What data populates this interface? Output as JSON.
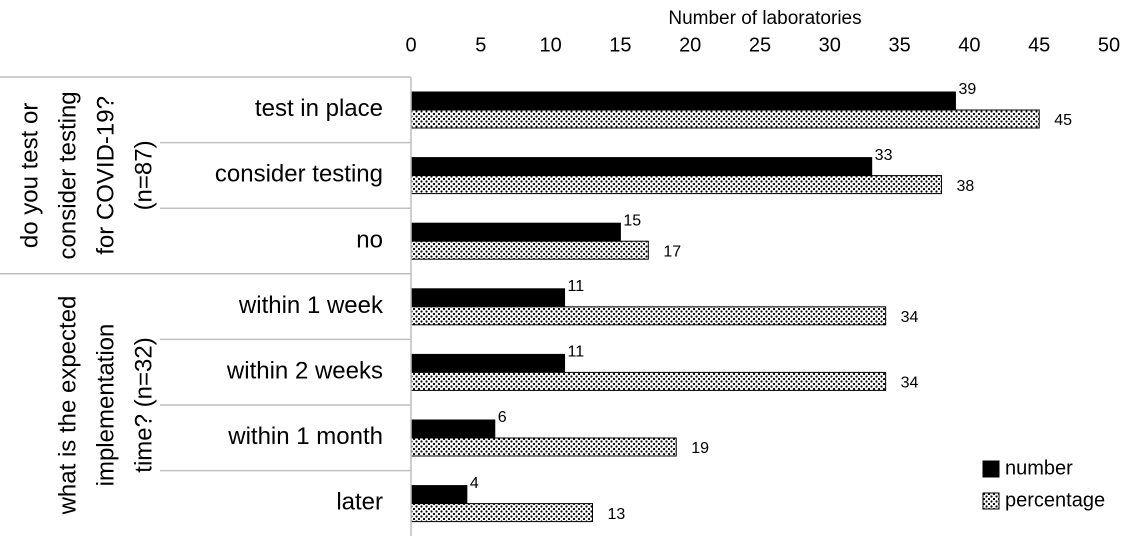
{
  "chart_data": {
    "type": "bar",
    "orientation": "horizontal",
    "x_label": "Number of laboratories",
    "xlim": [
      0,
      50
    ],
    "xticks": [
      0,
      5,
      10,
      15,
      20,
      25,
      30,
      35,
      40,
      45,
      50
    ],
    "groups": [
      {
        "label": [
          "do you test or",
          "consider testing",
          "for COVID-19?",
          "(n=87)"
        ],
        "categories": [
          "test in place",
          "consider testing",
          "no"
        ]
      },
      {
        "label": [
          "what is the expected",
          "implementation",
          "time? (n=32)"
        ],
        "categories": [
          "within 1 week",
          "within 2 weeks",
          "within 1 month",
          "later"
        ]
      }
    ],
    "series": [
      {
        "name": "number",
        "color": "#000000",
        "values": [
          39,
          33,
          15,
          11,
          11,
          6,
          4
        ]
      },
      {
        "name": "percentage",
        "color": "#ffffff",
        "pattern": "dots",
        "values": [
          45,
          38,
          17,
          34,
          34,
          19,
          13
        ]
      }
    ],
    "legend": "bottom-right",
    "grid": false
  }
}
